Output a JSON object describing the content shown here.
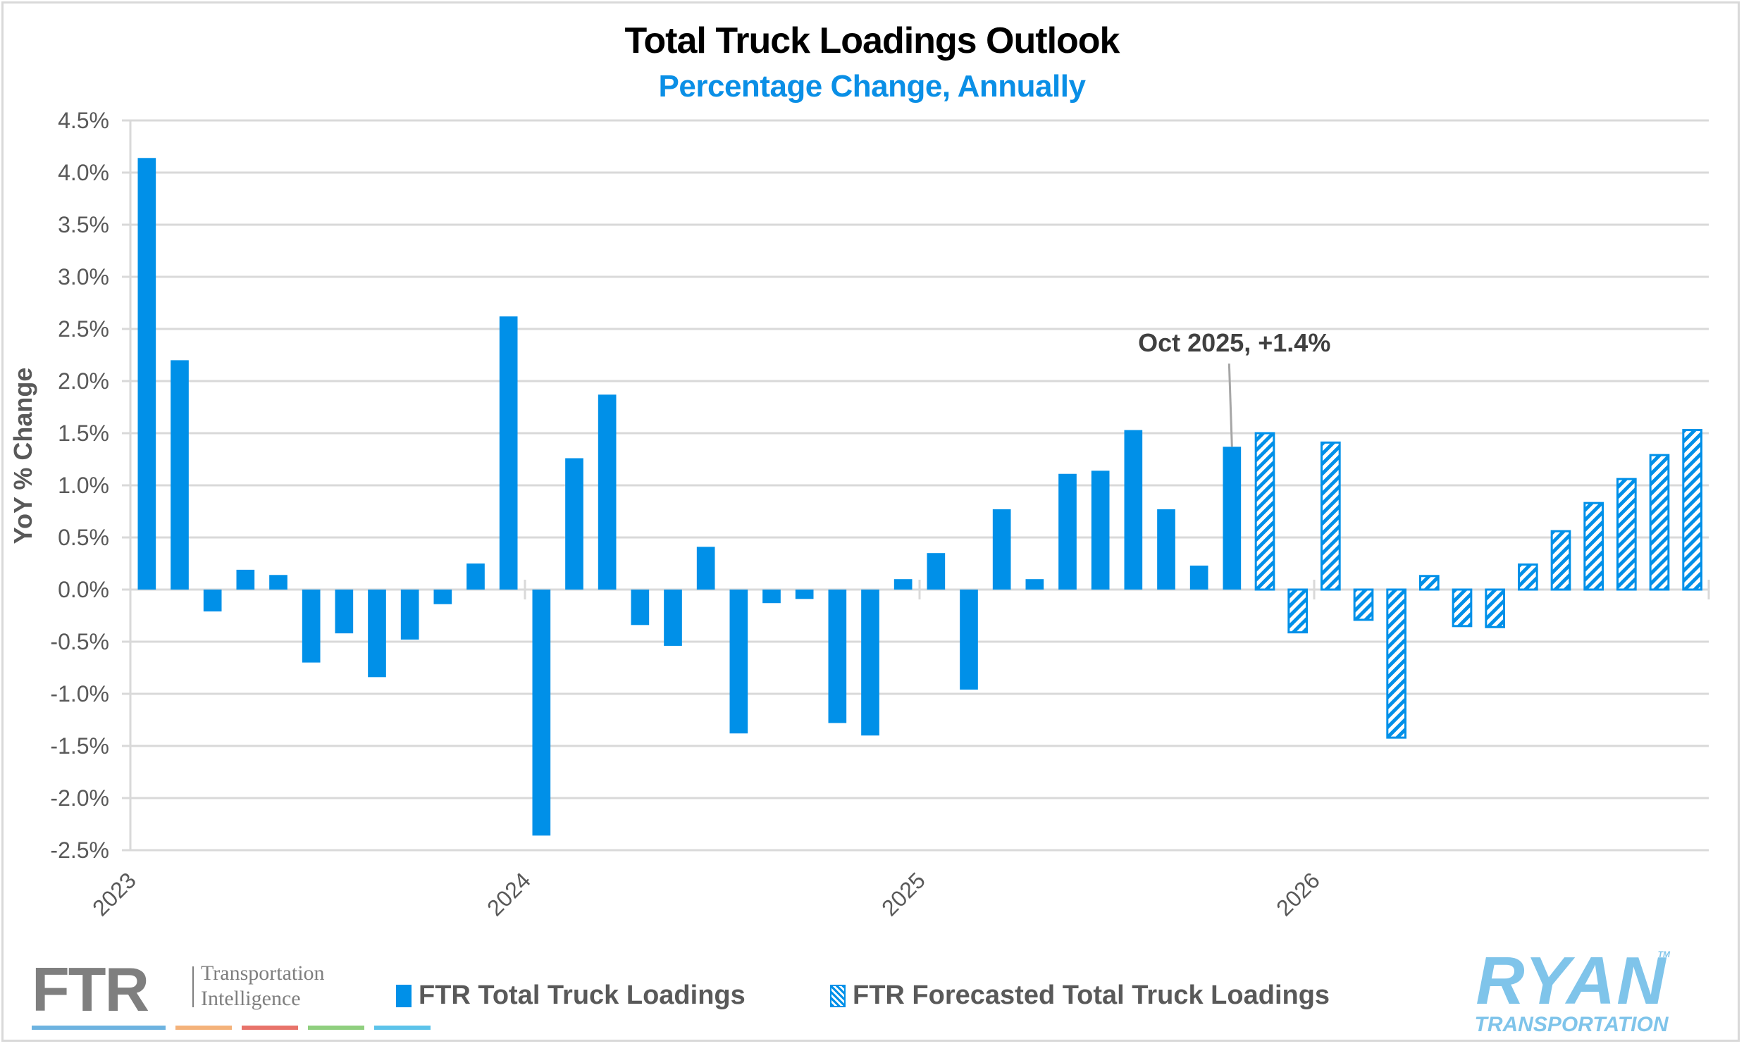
{
  "header": {
    "title": "Total Truck Loadings Outlook",
    "subtitle": "Percentage Change, Annually"
  },
  "colors": {
    "bar": "#0090e8",
    "subtitle": "#0a8fe6",
    "grid": "#d9d9d9",
    "text": "#595959"
  },
  "logos": {
    "ftr_word": "FTR",
    "ftr_tagline_1": "Transportation",
    "ftr_tagline_2": "Intelligence",
    "ftr_bar_colors": [
      "#6db3e0",
      "#f4b27a",
      "#e8736a",
      "#8fcf7e",
      "#5cc3ea"
    ],
    "ryan_main": "RYAN",
    "ryan_sub": "TRANSPORTATION",
    "ryan_tm": "TM"
  },
  "chart_data": {
    "type": "bar",
    "title": "Total Truck Loadings Outlook",
    "subtitle": "Percentage Change, Annually",
    "xlabel": "",
    "ylabel": "YoY % Change",
    "ylim": [
      -2.5,
      4.5
    ],
    "ytick_step": 0.5,
    "yticks": [
      "4.5%",
      "4.0%",
      "3.5%",
      "3.0%",
      "2.5%",
      "2.0%",
      "1.5%",
      "1.0%",
      "0.5%",
      "0.0%",
      "-0.5%",
      "-1.0%",
      "-1.5%",
      "-2.0%",
      "-2.5%"
    ],
    "grid": true,
    "legend_position": "bottom",
    "year_labels": [
      "2023",
      "2024",
      "2025",
      "2026"
    ],
    "categories": [
      "Jan 2023",
      "Feb 2023",
      "Mar 2023",
      "Apr 2023",
      "May 2023",
      "Jun 2023",
      "Jul 2023",
      "Aug 2023",
      "Sep 2023",
      "Oct 2023",
      "Nov 2023",
      "Dec 2023",
      "Jan 2024",
      "Feb 2024",
      "Mar 2024",
      "Apr 2024",
      "May 2024",
      "Jun 2024",
      "Jul 2024",
      "Aug 2024",
      "Sep 2024",
      "Oct 2024",
      "Nov 2024",
      "Dec 2024",
      "Jan 2025",
      "Feb 2025",
      "Mar 2025",
      "Apr 2025",
      "May 2025",
      "Jun 2025",
      "Jul 2025",
      "Aug 2025",
      "Sep 2025",
      "Oct 2025",
      "Nov 2025",
      "Dec 2025",
      "Jan 2026",
      "Feb 2026",
      "Mar 2026",
      "Apr 2026",
      "May 2026",
      "Jun 2026",
      "Jul 2026",
      "Aug 2026",
      "Sep 2026",
      "Oct 2026",
      "Nov 2026",
      "Dec 2026"
    ],
    "series": [
      {
        "name": "FTR Total Truck Loadings",
        "style": "solid",
        "values": [
          4.14,
          2.2,
          -0.21,
          0.19,
          0.14,
          -0.7,
          -0.42,
          -0.84,
          -0.48,
          -0.14,
          0.25,
          2.62,
          -2.36,
          1.26,
          1.87,
          -0.34,
          -0.54,
          0.41,
          -1.38,
          -0.13,
          -0.09,
          -1.28,
          -1.4,
          0.1,
          0.35,
          -0.96,
          0.77,
          0.1,
          1.11,
          1.14,
          1.53,
          0.77,
          0.23,
          1.37,
          null,
          null,
          null,
          null,
          null,
          null,
          null,
          null,
          null,
          null,
          null,
          null,
          null,
          null
        ]
      },
      {
        "name": "FTR Forecasted Total Truck Loadings",
        "style": "hatched",
        "values": [
          null,
          null,
          null,
          null,
          null,
          null,
          null,
          null,
          null,
          null,
          null,
          null,
          null,
          null,
          null,
          null,
          null,
          null,
          null,
          null,
          null,
          null,
          null,
          null,
          null,
          null,
          null,
          null,
          null,
          null,
          null,
          null,
          null,
          null,
          1.5,
          -0.41,
          1.41,
          -0.29,
          -1.42,
          0.13,
          -0.35,
          -0.36,
          0.24,
          0.56,
          0.83,
          1.06,
          1.29,
          1.53
        ]
      }
    ],
    "annotations": [
      {
        "text": "Oct 2025, +1.4%",
        "category": "Oct 2025",
        "value": 1.37
      }
    ]
  },
  "legend": {
    "items": [
      {
        "label": "FTR Total Truck Loadings",
        "style": "solid"
      },
      {
        "label": "FTR Forecasted Total Truck Loadings",
        "style": "hatched"
      }
    ]
  }
}
